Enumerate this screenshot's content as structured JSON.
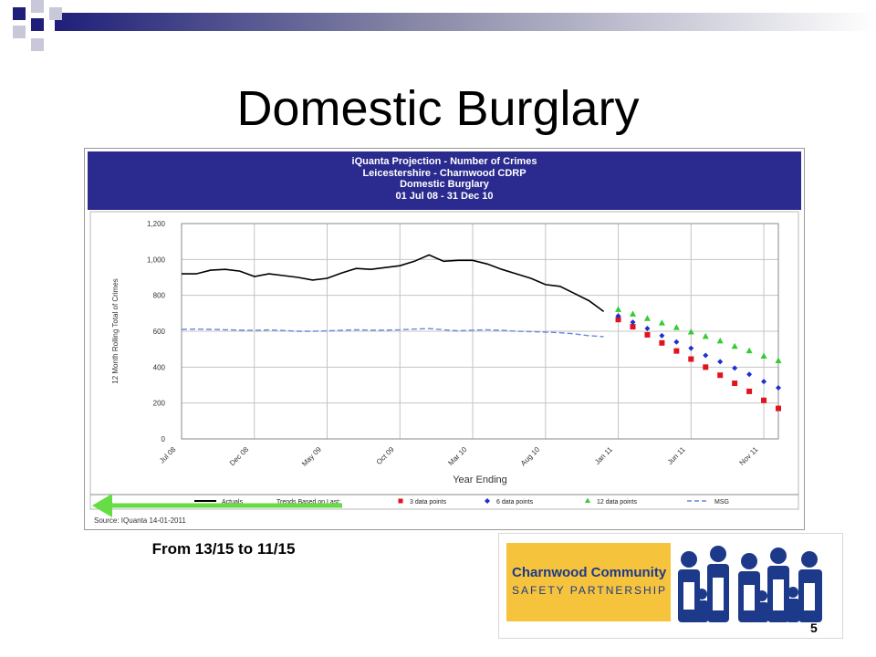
{
  "slide": {
    "title": "Domestic Burglary",
    "page_number": "5",
    "caption": "From 13/15 to 11/15",
    "colors": {
      "banner_blue": "#1f1f7a",
      "banner_gray": "#c8c8d8",
      "arrow_green": "#66dd44",
      "header_blue": "#2a2a8f"
    },
    "logo": {
      "line1": "Charnwood Community",
      "line2": "SAFETY PARTNERSHIP",
      "band_color": "#f6c33c",
      "text_color": "#1d3a8a",
      "figure_color": "#1d3a8a"
    }
  },
  "chart_data": {
    "type": "line",
    "title_lines": [
      "iQuanta Projection - Number of Crimes",
      "Leicestershire - Charnwood CDRP",
      "Domestic Burglary",
      "01 Jul 08 - 31 Dec 10"
    ],
    "xlabel": "Year Ending",
    "ylabel": "12 Month Rolling Total of Crimes",
    "ylim": [
      0,
      1200
    ],
    "yticks": [
      "0",
      "200",
      "400",
      "600",
      "800",
      "1,000",
      "1,200"
    ],
    "ytick_values": [
      0,
      200,
      400,
      600,
      800,
      1000,
      1200
    ],
    "xlim": [
      0,
      41
    ],
    "xtick_labels": [
      "Jul 08",
      "Dec 08",
      "May 09",
      "Oct 09",
      "Mar 10",
      "Aug 10",
      "Jan 11",
      "Jun 11",
      "Nov 11"
    ],
    "xtick_values": [
      0,
      5,
      10,
      15,
      20,
      25,
      30,
      35,
      40
    ],
    "grid": true,
    "legend_position": "bottom",
    "source": "Source: IQuanta 14-01-2011",
    "series": [
      {
        "name": "Actuals",
        "style": "line",
        "color": "#000000",
        "x": [
          0,
          1,
          2,
          3,
          4,
          5,
          6,
          7,
          8,
          9,
          10,
          11,
          12,
          13,
          14,
          15,
          16,
          17,
          18,
          19,
          20,
          21,
          22,
          23,
          24,
          25,
          26,
          27,
          28,
          29
        ],
        "values": [
          920,
          920,
          940,
          945,
          935,
          905,
          920,
          910,
          900,
          885,
          895,
          925,
          950,
          945,
          955,
          965,
          990,
          1025,
          990,
          995,
          995,
          975,
          945,
          920,
          895,
          860,
          850,
          810,
          770,
          710
        ]
      },
      {
        "name": "Trends Based on Last:",
        "style": "none",
        "color": "#000000",
        "x": [],
        "values": []
      },
      {
        "name": "3 data points",
        "style": "markers",
        "marker": "square",
        "color": "#e0141e",
        "x": [
          30,
          31,
          32,
          33,
          34,
          35,
          36,
          37,
          38,
          39,
          40,
          41
        ],
        "values": [
          665,
          625,
          580,
          535,
          490,
          445,
          400,
          355,
          310,
          265,
          215,
          170
        ]
      },
      {
        "name": "6 data points",
        "style": "markers",
        "marker": "diamond",
        "color": "#1c2fcf",
        "x": [
          30,
          31,
          32,
          33,
          34,
          35,
          36,
          37,
          38,
          39,
          40,
          41
        ],
        "values": [
          685,
          650,
          615,
          575,
          540,
          505,
          465,
          430,
          395,
          360,
          320,
          285
        ]
      },
      {
        "name": "12 data points",
        "style": "markers",
        "marker": "triangle",
        "color": "#33cc33",
        "x": [
          30,
          31,
          32,
          33,
          34,
          35,
          36,
          37,
          38,
          39,
          40,
          41
        ],
        "values": [
          720,
          695,
          670,
          645,
          620,
          595,
          570,
          545,
          515,
          490,
          460,
          435
        ]
      },
      {
        "name": "MSG",
        "style": "dashed",
        "color": "#6688dd",
        "x": [
          0,
          1,
          2,
          3,
          4,
          5,
          6,
          7,
          8,
          9,
          10,
          11,
          12,
          13,
          14,
          15,
          16,
          17,
          18,
          19,
          20,
          21,
          22,
          23,
          24,
          25,
          26,
          27,
          28,
          29
        ],
        "values": [
          610,
          612,
          610,
          608,
          606,
          605,
          607,
          604,
          600,
          600,
          602,
          605,
          608,
          606,
          606,
          608,
          612,
          615,
          608,
          602,
          606,
          608,
          605,
          600,
          598,
          595,
          592,
          585,
          575,
          570
        ]
      }
    ]
  }
}
